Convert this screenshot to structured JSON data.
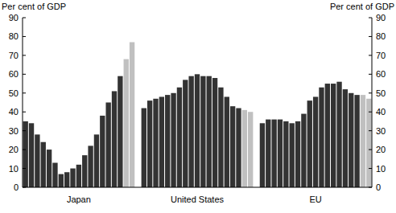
{
  "chart_data": {
    "type": "bar",
    "ylabel": "Per cent of GDP",
    "categories": [
      null,
      null,
      null,
      null,
      null,
      null,
      null,
      null,
      null,
      "Japan",
      null,
      null,
      null,
      null,
      null,
      null,
      null,
      null,
      null,
      null,
      null,
      null,
      null,
      null,
      null,
      null,
      null,
      null,
      null,
      "United States",
      null,
      null,
      null,
      null,
      null,
      null,
      null,
      null,
      null,
      null,
      null,
      null,
      null,
      null,
      null,
      null,
      null,
      null,
      null,
      "EU",
      null,
      null,
      null,
      null,
      null,
      null,
      null,
      null,
      null
    ],
    "values": [
      35,
      34,
      28,
      24,
      20,
      13,
      7,
      8,
      10,
      12,
      17,
      22,
      28,
      38,
      45,
      51,
      59,
      68,
      77,
      null,
      42,
      46,
      47,
      48,
      49,
      50,
      53,
      57,
      59,
      60,
      59,
      59,
      58,
      53,
      48,
      43,
      42,
      41,
      40,
      null,
      34,
      36,
      36,
      36,
      35,
      34,
      35,
      39,
      46,
      48,
      53,
      55,
      55,
      56,
      52,
      50,
      49,
      49,
      47
    ],
    "colors": [
      "#333333",
      "#333333",
      "#333333",
      "#333333",
      "#333333",
      "#333333",
      "#333333",
      "#333333",
      "#333333",
      "#333333",
      "#333333",
      "#333333",
      "#333333",
      "#333333",
      "#333333",
      "#333333",
      "#333333",
      "#c0c0c0",
      "#c0c0c0",
      null,
      "#333333",
      "#333333",
      "#333333",
      "#333333",
      "#333333",
      "#333333",
      "#333333",
      "#333333",
      "#333333",
      "#333333",
      "#333333",
      "#333333",
      "#333333",
      "#333333",
      "#333333",
      "#333333",
      "#333333",
      "#c0c0c0",
      "#c0c0c0",
      null,
      "#333333",
      "#333333",
      "#333333",
      "#333333",
      "#333333",
      "#333333",
      "#333333",
      "#333333",
      "#333333",
      "#333333",
      "#333333",
      "#333333",
      "#333333",
      "#333333",
      "#333333",
      "#333333",
      "#333333",
      "#c0c0c0",
      "#c0c0c0"
    ],
    "ylim": [
      0,
      90
    ],
    "yticks": [
      0,
      10,
      20,
      30,
      40,
      50,
      60,
      70,
      80,
      90
    ],
    "grid": false
  }
}
